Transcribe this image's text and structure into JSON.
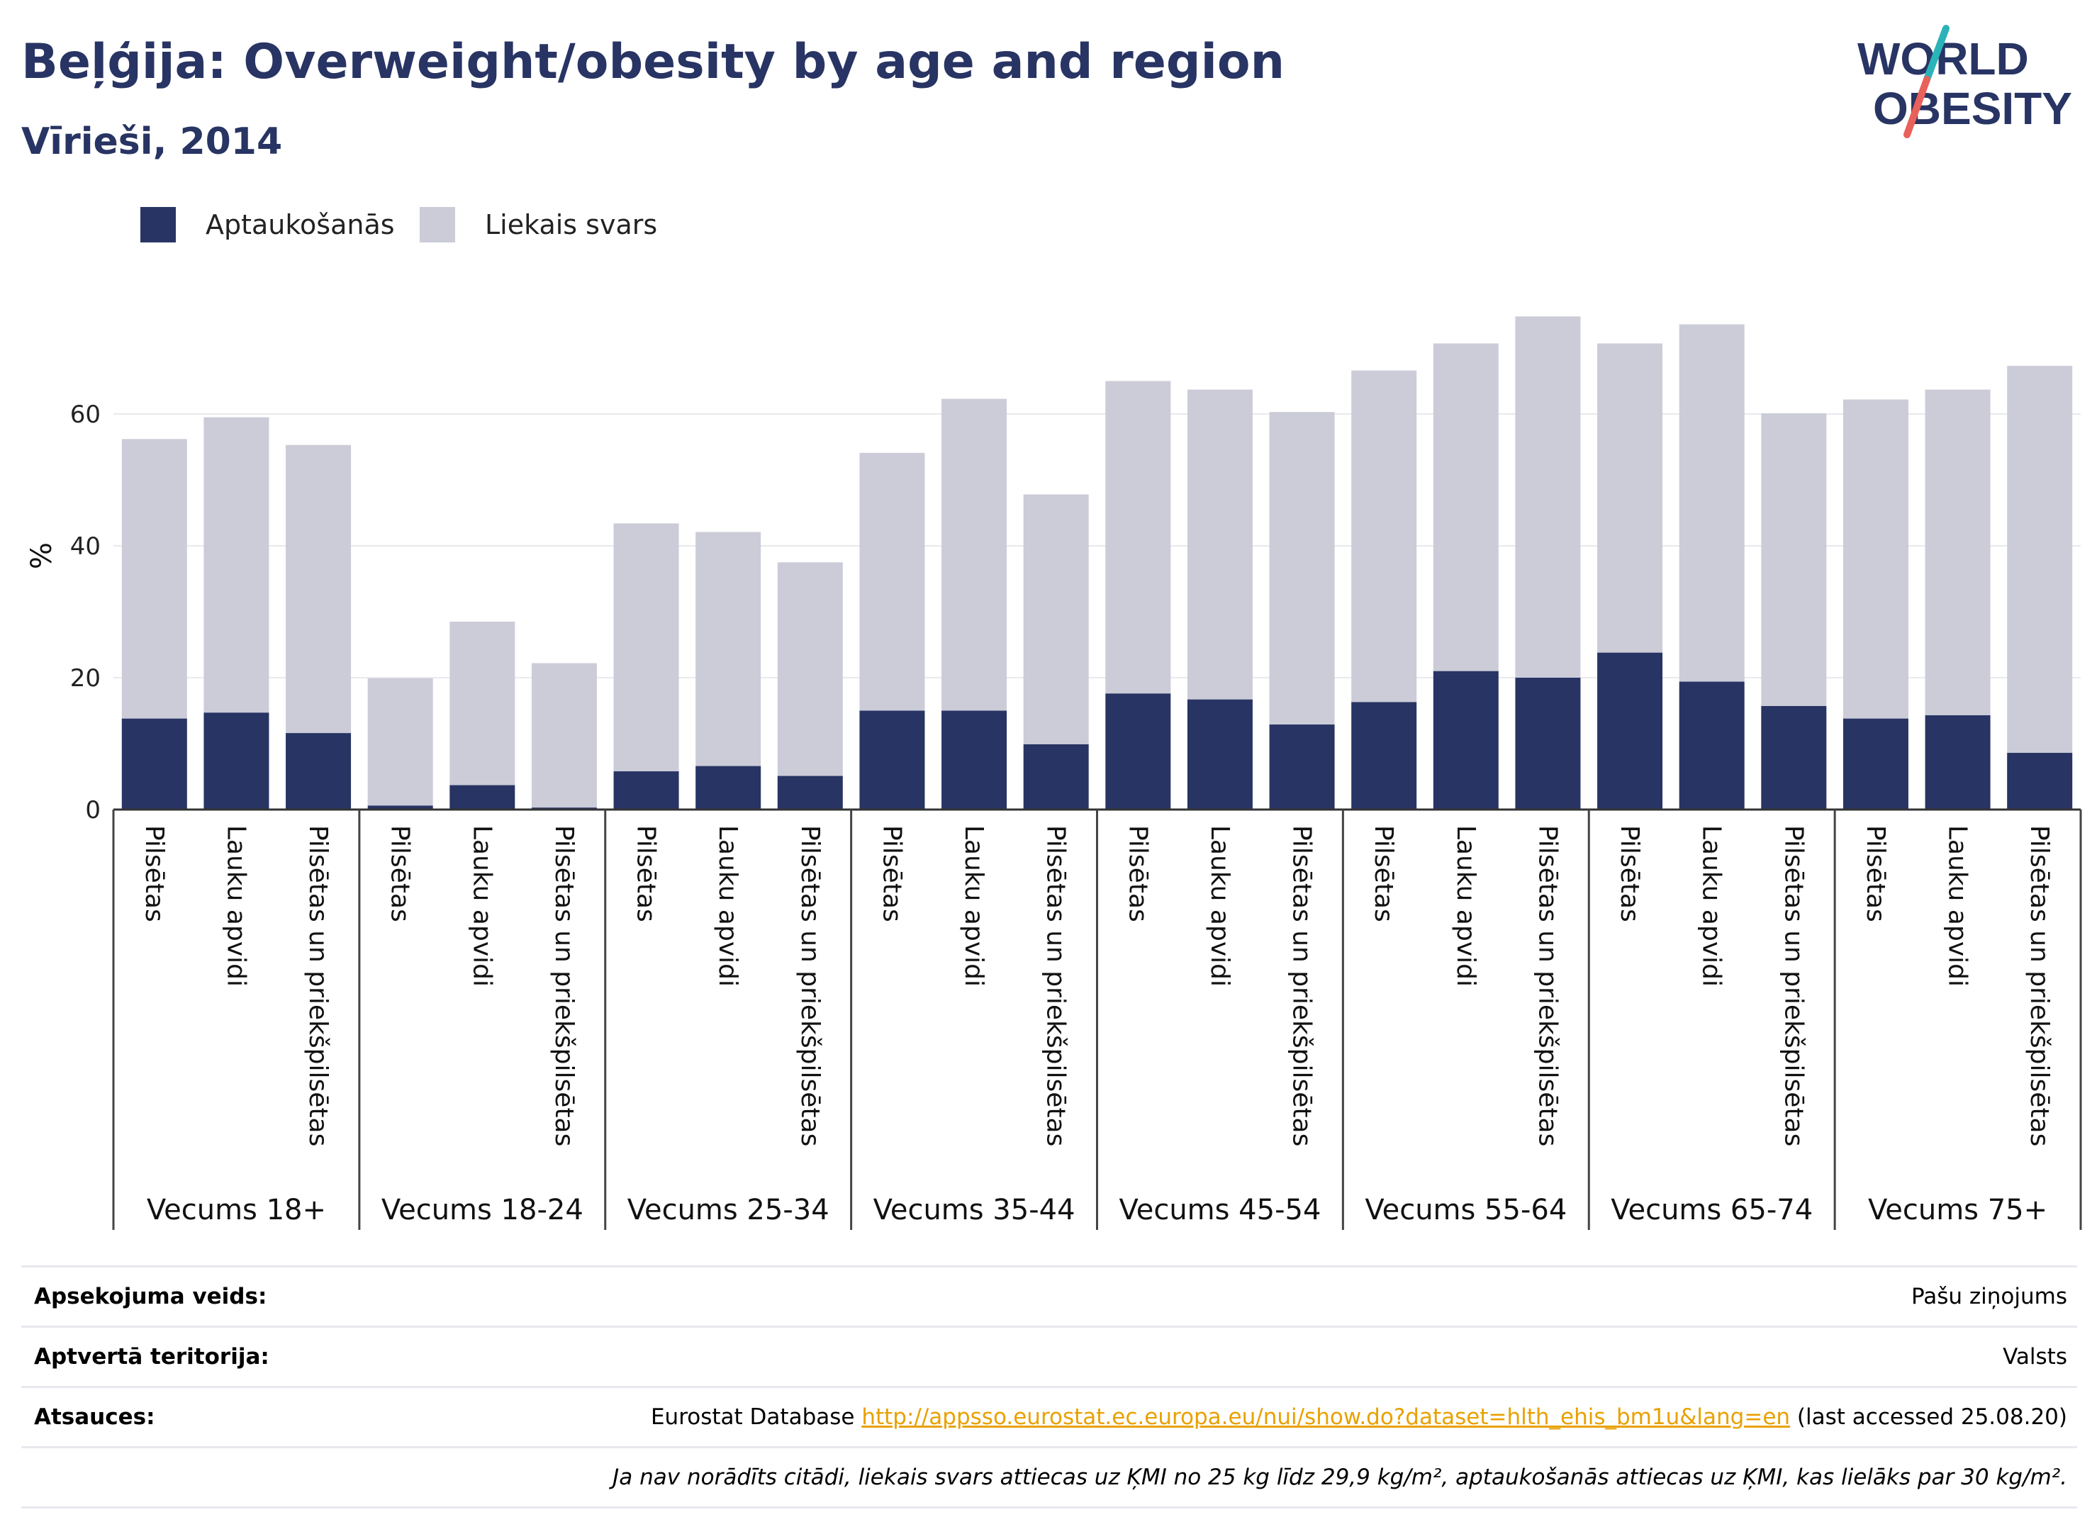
{
  "header": {
    "title": "Beļģija: Overweight/obesity by age and region",
    "subtitle": "Vīrieši, 2014"
  },
  "logo": {
    "line1": "WORLD",
    "line2": "OBESITY",
    "colors": {
      "text": "#283463",
      "slash_top": "#2ab3b8",
      "slash_bottom": "#e8615a"
    }
  },
  "legend": [
    {
      "label": "Aptaukošanās",
      "color": "#283463"
    },
    {
      "label": "Liekais svars",
      "color": "#cbccd8"
    }
  ],
  "chart_data": {
    "type": "bar",
    "stacked": true,
    "ylabel": "%",
    "ylim": [
      0,
      80
    ],
    "yticks": [
      0,
      20,
      40,
      60
    ],
    "grid": true,
    "legend_position": "top-left",
    "groups": [
      "Vecums 18+",
      "Vecums 18-24",
      "Vecums 25-34",
      "Vecums 35-44",
      "Vecums 45-54",
      "Vecums 55-64",
      "Vecums 65-74",
      "Vecums 75+"
    ],
    "subcategories": [
      "Pilsētas",
      "Lauku apvidi",
      "Pilsētas un priekšpilsētas"
    ],
    "series": [
      {
        "name": "Aptaukošanās",
        "color": "#283463",
        "values": [
          13.8,
          14.7,
          11.6,
          0.6,
          3.7,
          0.3,
          5.8,
          6.6,
          5.1,
          15.0,
          15.0,
          9.9,
          17.6,
          16.7,
          12.9,
          16.3,
          21.0,
          20.0,
          23.8,
          19.4,
          15.7,
          13.8,
          14.3,
          8.6
        ]
      },
      {
        "name": "Liekais svars",
        "color": "#cbccd8",
        "values": [
          42.4,
          44.8,
          43.7,
          19.3,
          24.8,
          21.9,
          37.6,
          35.5,
          32.4,
          39.1,
          47.3,
          37.9,
          47.4,
          47.0,
          47.4,
          50.3,
          49.7,
          54.8,
          46.9,
          54.2,
          44.4,
          48.4,
          49.4,
          58.7
        ]
      }
    ]
  },
  "info": {
    "survey_type_label": "Apsekojuma veids:",
    "survey_type_value": "Pašu ziņojums",
    "coverage_label": "Aptvertā teritorija:",
    "coverage_value": "Valsts",
    "references_label": "Atsauces:",
    "references_prefix": "Eurostat Database",
    "references_link": "http://appsso.eurostat.ec.europa.eu/nui/show.do?dataset=hlth_ehis_bm1u&lang=en",
    "references_suffix": "(last accessed 25.08.20)",
    "note": "Ja nav norādīts citādi, liekais svars attiecas uz ĶMI no 25 kg līdz 29,9 kg/m², aptaukošanās attiecas uz ĶMI, kas lielāks par 30 kg/m²."
  }
}
